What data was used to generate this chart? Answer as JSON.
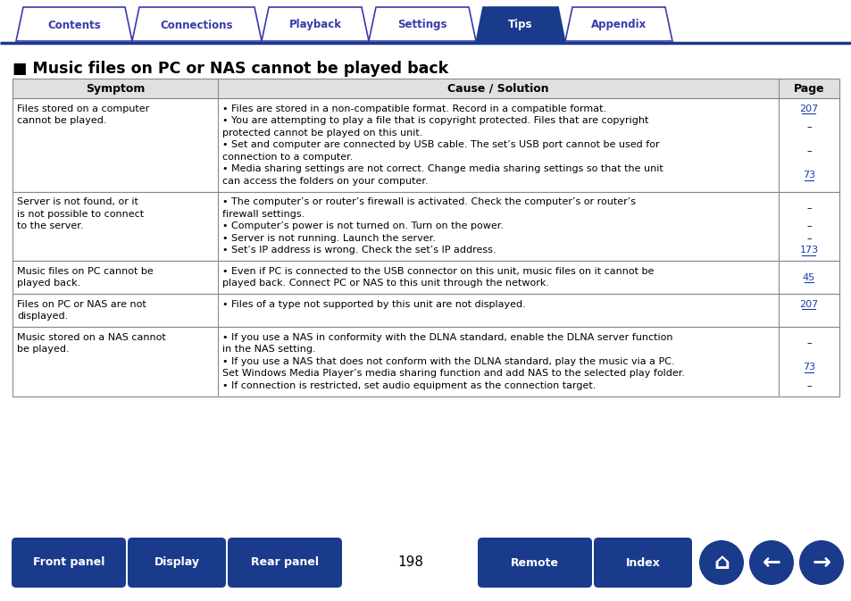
{
  "bg_color": "#ffffff",
  "title": "■ Music files on PC or NAS cannot be played back",
  "title_color": "#000000",
  "title_fontsize": 13,
  "tab_labels": [
    "Contents",
    "Connections",
    "Playback",
    "Settings",
    "Tips",
    "Appendix"
  ],
  "tab_active": 4,
  "tab_active_color": "#1a3a8c",
  "tab_inactive_color": "#ffffff",
  "tab_active_text_color": "#ffffff",
  "tab_inactive_text_color": "#3a3aaa",
  "tab_border_color": "#3a3aaa",
  "nav_buttons": [
    "Front panel",
    "Display",
    "Rear panel",
    "Remote",
    "Index"
  ],
  "nav_button_color": "#1a3a8c",
  "nav_button_text_color": "#ffffff",
  "page_number": "198",
  "header_row": [
    "Symptom",
    "Cause / Solution",
    "Page"
  ],
  "header_bg": "#e0e0e0",
  "table_border_color": "#888888",
  "rows": [
    {
      "symptom": "Files stored on a computer cannot be played.",
      "causes": [
        {
          "text": "• Files are stored in a non-compatible format. Record in a compatible format.",
          "page": "207",
          "page_link": true
        },
        {
          "text": "• You are attempting to play a file that is copyright protected. Files that are copyright protected cannot be played on this unit.",
          "page": "–",
          "page_link": false
        },
        {
          "text": "• Set and computer are connected by USB cable. The set’s USB port cannot be used for connection to a computer.",
          "page": "–",
          "page_link": false
        },
        {
          "text": "• Media sharing settings are not correct. Change media sharing settings so that the unit can access the folders on your computer.",
          "page": "73",
          "page_link": true
        }
      ]
    },
    {
      "symptom": "Server is not found, or it is not possible to connect to the server.",
      "causes": [
        {
          "text": "• The computer’s or router’s firewall is activated. Check the computer’s or router’s firewall settings.",
          "page": "–",
          "page_link": false
        },
        {
          "text": "• Computer’s power is not turned on. Turn on the power.",
          "page": "–",
          "page_link": false
        },
        {
          "text": "• Server is not running. Launch the server.",
          "page": "–",
          "page_link": false
        },
        {
          "text": "• Set’s IP address is wrong. Check the set’s IP address.",
          "page": "173",
          "page_link": true
        }
      ]
    },
    {
      "symptom": "Music files on PC cannot be played back.",
      "causes": [
        {
          "text": "• Even if PC is connected to the USB connector on this unit, music files on it cannot be played back. Connect PC or NAS to this unit through the network.",
          "page": "45",
          "page_link": true
        }
      ]
    },
    {
      "symptom": "Files on PC or NAS are not displayed.",
      "causes": [
        {
          "text": "• Files of a type not supported by this unit are not displayed.",
          "page": "207",
          "page_link": true
        }
      ]
    },
    {
      "symptom": "Music stored on a NAS cannot be played.",
      "causes": [
        {
          "text": "• If you use a NAS in conformity with the DLNA standard, enable the DLNA server function in the NAS setting.",
          "page": "–",
          "page_link": false
        },
        {
          "text": "• If you use a NAS that does not conform with the DLNA standard, play the music via a PC. Set Windows Media Player’s media sharing function and add NAS to the selected play folder.",
          "page": "73",
          "page_link": true
        },
        {
          "text": "• If connection is restricted, set audio equipment as the connection target.",
          "page": "–",
          "page_link": false
        }
      ]
    }
  ]
}
